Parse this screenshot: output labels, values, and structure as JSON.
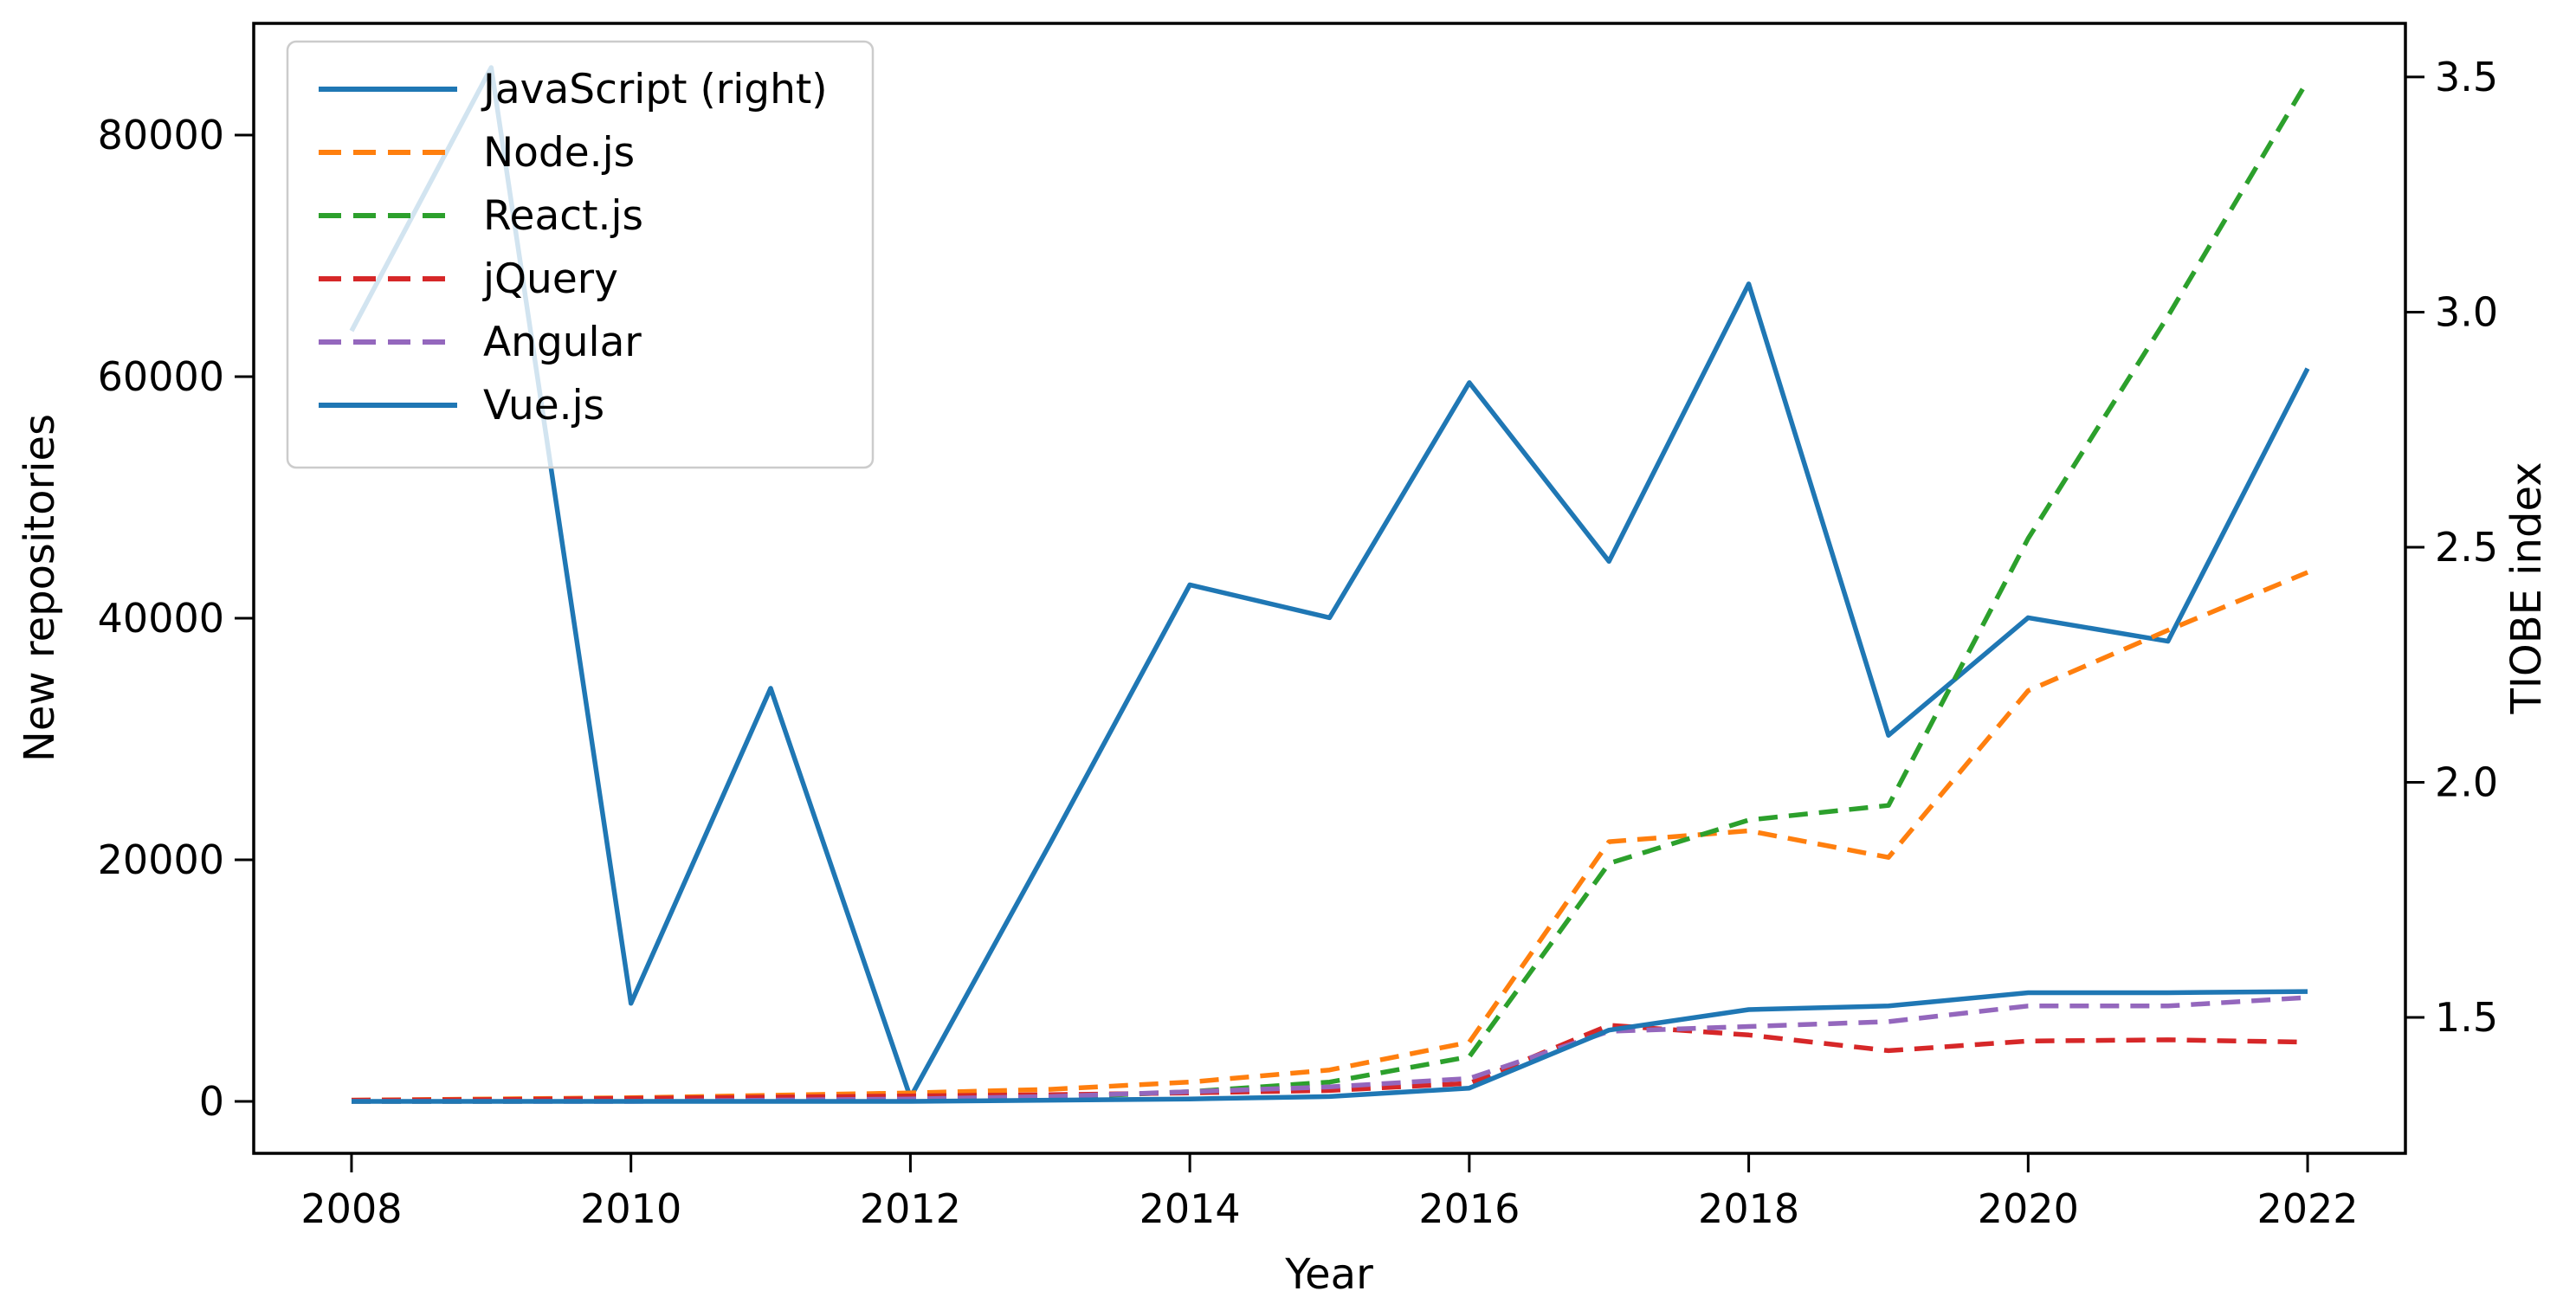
{
  "figure": {
    "background": "#ffffff",
    "xlabel": "Year",
    "ylabel_left": "New repositories",
    "ylabel_right": "TIOBE index"
  },
  "legend": {
    "position": "upper left",
    "entries": [
      "JavaScript (right)",
      "Node.js",
      "React.js",
      "jQuery",
      "Angular",
      "Vue.js"
    ]
  },
  "chart_data": {
    "type": "line",
    "title": "",
    "xlabel": "Year",
    "ylabel_left": "New repositories",
    "ylabel_right": "TIOBE index",
    "grid": false,
    "legend_position": "upper left",
    "x": [
      2008,
      2009,
      2010,
      2011,
      2012,
      2013,
      2014,
      2015,
      2016,
      2017,
      2018,
      2019,
      2020,
      2021,
      2022
    ],
    "x_ticks": [
      2008,
      2010,
      2012,
      2014,
      2016,
      2018,
      2020,
      2022
    ],
    "y_left_ticks": [
      0,
      20000,
      40000,
      60000,
      80000
    ],
    "y_right_ticks": [
      1.5,
      2.0,
      2.5,
      3.0,
      3.5
    ],
    "x_range": [
      2007.3,
      2022.7
    ],
    "y_left_range": [
      -4301,
      89247
    ],
    "y_right_range": [
      1.211,
      3.614
    ],
    "series": [
      {
        "id": "javascript",
        "label": "JavaScript (right)",
        "axis": "right",
        "color": "#1f77b4",
        "style": "solid",
        "values": [
          2.96,
          3.52,
          1.53,
          2.2,
          1.33,
          1.87,
          2.42,
          2.35,
          2.85,
          2.47,
          3.06,
          2.1,
          2.35,
          2.3,
          2.88
        ]
      },
      {
        "id": "nodejs",
        "label": "Node.js",
        "axis": "left",
        "color": "#ff7f0e",
        "style": "dashed",
        "values": [
          100,
          200,
          300,
          500,
          700,
          1000,
          1600,
          2600,
          4900,
          21500,
          22400,
          20200,
          34000,
          39000,
          43800
        ]
      },
      {
        "id": "reactjs",
        "label": "React.js",
        "axis": "left",
        "color": "#2ca02c",
        "style": "dashed",
        "values": [
          0,
          0,
          50,
          100,
          150,
          300,
          800,
          1600,
          3700,
          19700,
          23300,
          24500,
          46600,
          65000,
          84500
        ]
      },
      {
        "id": "jquery",
        "label": "jQuery",
        "axis": "left",
        "color": "#d62728",
        "style": "dashed",
        "values": [
          100,
          150,
          250,
          350,
          450,
          550,
          700,
          900,
          1500,
          6300,
          5500,
          4200,
          5000,
          5100,
          4900
        ]
      },
      {
        "id": "angular",
        "label": "Angular",
        "axis": "left",
        "color": "#9467bd",
        "style": "dashed",
        "values": [
          0,
          0,
          0,
          100,
          200,
          400,
          800,
          1200,
          1900,
          5800,
          6200,
          6600,
          7900,
          7900,
          8600
        ]
      },
      {
        "id": "vuejs",
        "label": "Vue.js",
        "axis": "left",
        "color": "#1f77b4",
        "style": "solid",
        "values": [
          0,
          0,
          0,
          0,
          0,
          100,
          200,
          400,
          1100,
          5900,
          7600,
          7900,
          9000,
          9000,
          9100
        ]
      }
    ]
  }
}
